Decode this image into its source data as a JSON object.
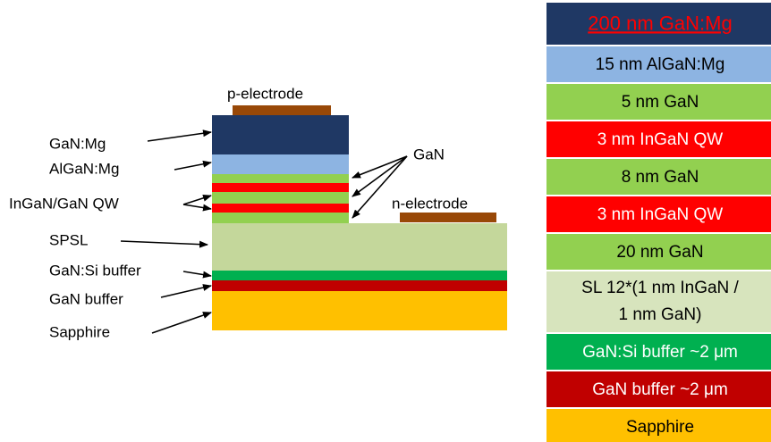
{
  "diagram": {
    "labels": {
      "p_electrode": "p-electrode",
      "n_electrode": "n-electrode",
      "gan_mg": "GaN:Mg",
      "algan_mg": "AlGaN:Mg",
      "qw": "InGaN/GaN QW",
      "spsl": "SPSL",
      "gan_si": "GaN:Si buffer",
      "gan_buffer": "GaN buffer",
      "sapphire": "Sapphire",
      "gan": "GaN"
    }
  },
  "layers": [
    "200 nm GaN:Mg",
    "15 nm AlGaN:Mg",
    "5 nm GaN",
    "3 nm InGaN QW",
    "8 nm GaN",
    "3 nm InGaN QW",
    "20 nm GaN",
    [
      "SL 12*(1 nm InGaN /",
      "1 nm GaN)"
    ],
    "GaN:Si buffer ~2 μm",
    "GaN buffer ~2 μm",
    "Sapphire"
  ]
}
